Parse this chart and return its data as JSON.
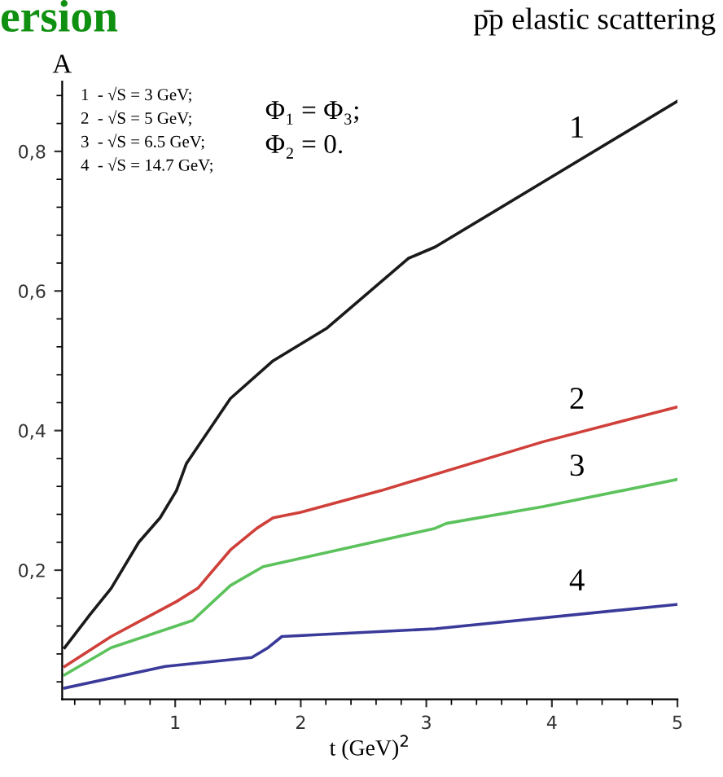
{
  "chart_data": {
    "type": "line",
    "title": "p̄p elastic scattering",
    "xlabel": "t (GeV)$^{2}$",
    "ylabel": "A",
    "annotations": [
      "ersion",
      "1  - √S = 3 GeV;\n2  - √S = 5 GeV;\n3  - √S = 6.5 GeV;\n4  - √S = 14.7 GeV;",
      "Φ₁ = Φ₃;\nΦ₂ = 0."
    ],
    "series": [
      {
        "name": "1",
        "color": "#1a1a1a",
        "x": [
          0.12,
          0.32,
          0.49,
          0.71,
          0.88,
          1.01,
          1.09,
          1.44,
          1.78,
          2.21,
          2.86,
          3.07,
          3.93,
          5.0
        ],
        "values": [
          0.089,
          0.136,
          0.174,
          0.24,
          0.275,
          0.314,
          0.353,
          0.446,
          0.5,
          0.547,
          0.647,
          0.663,
          0.756,
          0.872
        ]
      },
      {
        "name": "2",
        "color": "#d0403a",
        "x": [
          0.12,
          0.49,
          1.01,
          1.18,
          1.44,
          1.65,
          1.78,
          2.0,
          2.64,
          3.93,
          5.0
        ],
        "values": [
          0.062,
          0.105,
          0.155,
          0.174,
          0.229,
          0.26,
          0.275,
          0.283,
          0.314,
          0.384,
          0.434
        ]
      },
      {
        "name": "3",
        "color": "#5cc25c",
        "x": [
          0.12,
          0.49,
          1.14,
          1.44,
          1.7,
          2.0,
          3.07,
          3.16,
          3.93,
          5.0
        ],
        "values": [
          0.05,
          0.089,
          0.128,
          0.178,
          0.205,
          0.217,
          0.26,
          0.267,
          0.291,
          0.33
        ]
      },
      {
        "name": "4",
        "color": "#3a3a9a",
        "x": [
          0.12,
          0.92,
          1.61,
          1.74,
          1.85,
          3.07,
          5.0
        ],
        "values": [
          0.031,
          0.062,
          0.075,
          0.089,
          0.105,
          0.116,
          0.151
        ]
      }
    ],
    "xlim": [
      0.1,
      5
    ],
    "ylim": [
      0.015,
      0.9
    ],
    "xticks": [
      1,
      2,
      3,
      4,
      5
    ],
    "yticks": [
      {
        "value": 0.2,
        "label": "0,2"
      },
      {
        "value": 0.4,
        "label": "0,4"
      },
      {
        "value": 0.6,
        "label": "0,6"
      },
      {
        "value": 0.8,
        "label": "0,8"
      }
    ],
    "grid": false,
    "legend": false,
    "marker": "none",
    "line_style": "solid"
  }
}
